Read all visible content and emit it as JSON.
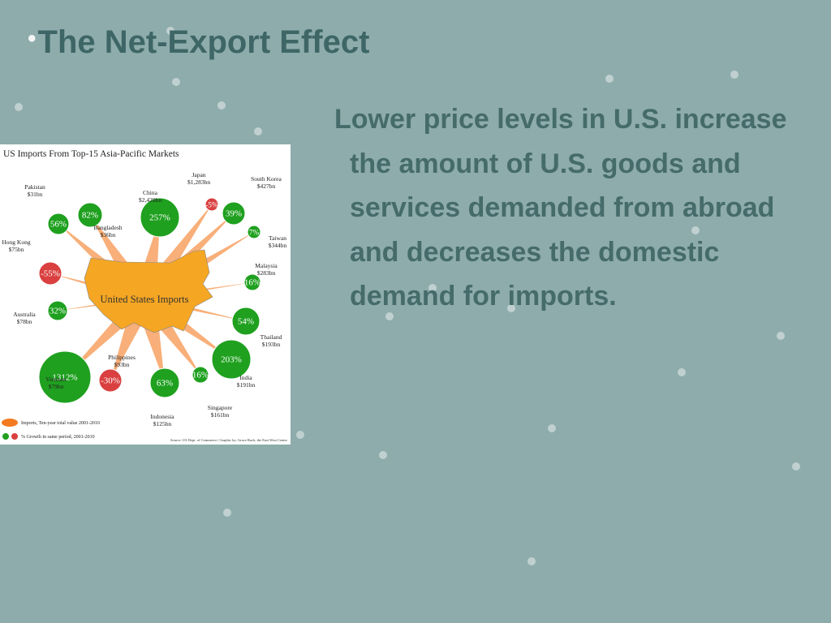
{
  "slide": {
    "title": "The Net-Export Effect",
    "body": "Lower price levels in U.S. increase the amount of U.S. goods and services demanded from abroad and decreases the domestic demand for imports.",
    "infographic": {
      "title": "US Imports From Top-15 Asia-Pacific Markets",
      "center_label": "United States Imports",
      "markets": [
        {
          "name": "Pakistan",
          "imports": "$31bn",
          "growth": "56%",
          "color": "#1fa01f"
        },
        {
          "name": "Bangladesh",
          "imports": "$36bn",
          "growth": "82%",
          "color": "#1fa01f"
        },
        {
          "name": "China",
          "imports": "$2,428bn",
          "growth": "257%",
          "color": "#1fa01f"
        },
        {
          "name": "Japan",
          "imports": "$1,283bn",
          "growth": "-5%",
          "color": "#d9403f"
        },
        {
          "name": "South Korea",
          "imports": "$427bn",
          "growth": "39%",
          "color": "#1fa01f"
        },
        {
          "name": "Taiwan",
          "imports": "$344bn",
          "growth": "7%",
          "color": "#1fa01f"
        },
        {
          "name": "Malaysia",
          "imports": "$283bn",
          "growth": "16%",
          "color": "#1fa01f"
        },
        {
          "name": "Thailand",
          "imports": "$193bn",
          "growth": "54%",
          "color": "#1fa01f"
        },
        {
          "name": "India",
          "imports": "$191bn",
          "growth": "203%",
          "color": "#1fa01f"
        },
        {
          "name": "Singapore",
          "imports": "$161bn",
          "growth": "16%",
          "color": "#1fa01f"
        },
        {
          "name": "Indonesia",
          "imports": "$125bn",
          "growth": "63%",
          "color": "#1fa01f"
        },
        {
          "name": "Philippines",
          "imports": "$93bn",
          "growth": "-30%",
          "color": "#d9403f"
        },
        {
          "name": "Vietnam",
          "imports": "$79bn",
          "growth": "1312%",
          "color": "#1fa01f"
        },
        {
          "name": "Australia",
          "imports": "$78bn",
          "growth": "32%",
          "color": "#1fa01f"
        },
        {
          "name": "Hong Kong",
          "imports": "$75bn",
          "growth": "-55%",
          "color": "#d9403f"
        }
      ],
      "legend": [
        "Imports, Ten-year total value 2001-2010",
        "% Growth in same period, 2001-2010"
      ],
      "source": "Source: US Dept. of Commerce | Graphic by: Grace Ruch, the East West Center"
    }
  }
}
